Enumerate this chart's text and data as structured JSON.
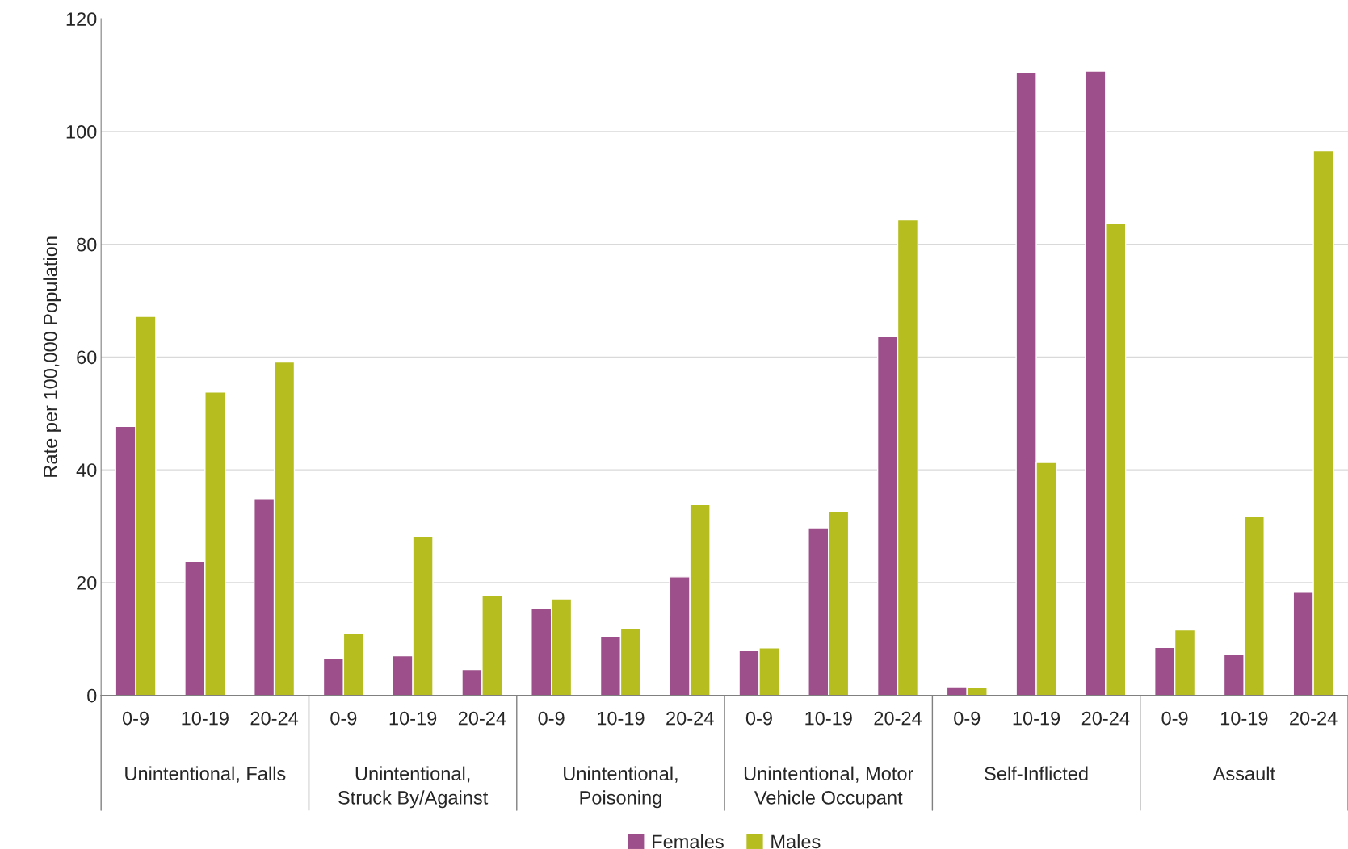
{
  "chart_data": {
    "type": "bar",
    "ylabel": "Rate per 100,000 Population",
    "categories": [
      "0-9",
      "10-19",
      "20-24",
      "0-9",
      "10-19",
      "20-24",
      "0-9",
      "10-19",
      "20-24",
      "0-9",
      "10-19",
      "20-24",
      "0-9",
      "10-19",
      "20-24",
      "0-9",
      "10-19",
      "20-24"
    ],
    "annotations": [
      "Unintentional, Falls",
      "Unintentional,\nStruck By/Against",
      "Unintentional,\nPoisoning",
      "Unintentional, Motor\nVehicle Occupant",
      "Self-Inflicted",
      "Assault"
    ],
    "series": [
      {
        "name": "Females",
        "color": "#9c4f8a",
        "values": [
          47.7,
          23.8,
          34.9,
          6.6,
          7.0,
          4.6,
          15.4,
          10.5,
          21.0,
          7.9,
          29.7,
          63.6,
          1.5,
          110.4,
          110.7,
          8.5,
          7.2,
          18.3
        ]
      },
      {
        "name": "Males",
        "color": "#b5bd1f",
        "values": [
          67.2,
          53.8,
          59.1,
          11.0,
          28.2,
          17.8,
          17.1,
          11.9,
          33.8,
          8.4,
          32.6,
          84.3,
          1.4,
          41.3,
          83.7,
          11.6,
          31.7,
          96.6
        ]
      }
    ],
    "ylim": [
      0,
      120
    ],
    "yticks": [
      0,
      20,
      40,
      60,
      80,
      100,
      120
    ],
    "grid": "y",
    "legend": "bottom"
  }
}
